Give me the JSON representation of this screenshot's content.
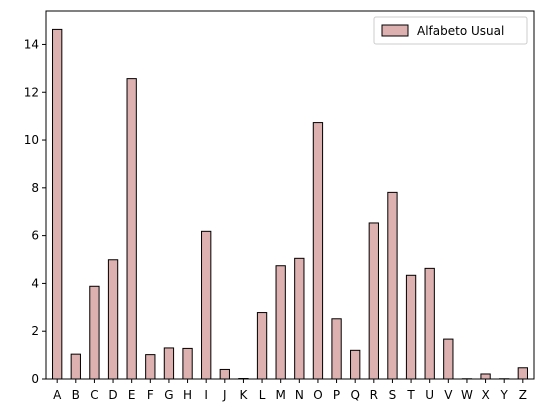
{
  "chart_data": {
    "type": "bar",
    "categories": [
      "A",
      "B",
      "C",
      "D",
      "E",
      "F",
      "G",
      "H",
      "I",
      "J",
      "K",
      "L",
      "M",
      "N",
      "O",
      "P",
      "Q",
      "R",
      "S",
      "T",
      "U",
      "V",
      "W",
      "X",
      "Y",
      "Z"
    ],
    "series": [
      {
        "name": "Alfabeto Usual",
        "values": [
          14.63,
          1.04,
          3.88,
          4.99,
          12.57,
          1.02,
          1.3,
          1.28,
          6.18,
          0.4,
          0.02,
          2.78,
          4.74,
          5.05,
          10.73,
          2.52,
          1.2,
          6.53,
          7.81,
          4.34,
          4.63,
          1.67,
          0.01,
          0.21,
          0.01,
          0.47
        ]
      }
    ],
    "ylim": [
      0,
      15.4
    ],
    "yticks": [
      0,
      2,
      4,
      6,
      8,
      10,
      12,
      14
    ],
    "legend_position": "top-right",
    "grid": false,
    "bar_color": "#ddb1b0",
    "edge_color": "#000000",
    "title": "",
    "xlabel": "",
    "ylabel": ""
  }
}
